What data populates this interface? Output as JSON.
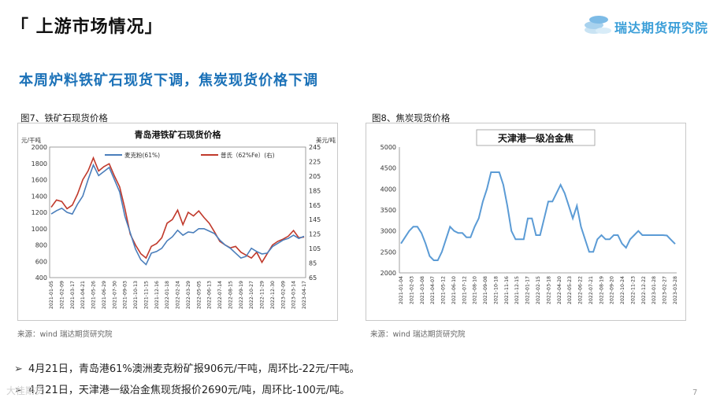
{
  "header": {
    "title": "「 上游市场情况」",
    "logo_text": "瑞达期货研究院"
  },
  "headline": "本周炉料铁矿石现货下调，焦炭现货价格下调",
  "figure1": {
    "caption": "图7、铁矿石现货价格",
    "source": "来源：wind   瑞达期货研究院"
  },
  "figure2": {
    "caption": "图8、焦炭现货价格",
    "source": "来源：wind   瑞达期货研究院"
  },
  "bullets": [
    "4月21日，青岛港61%澳洲麦克粉矿报906元/干吨，周环比-22元/干吨。",
    "4月21日，天津港一级冶金焦现货报价2690元/吨，周环比-100元/吨。"
  ],
  "page_number": "7",
  "watermark": "大佳期货",
  "colors": {
    "accent": "#1c72b8",
    "series_blue": "#4a7ebb",
    "series_red": "#c0392b",
    "coke": "#5b9bd5"
  },
  "chart_data": [
    {
      "type": "line",
      "title": "青岛港铁矿石现货价格",
      "ylabel_left": "元/干吨",
      "ylabel_right": "美元/吨",
      "ylim": [
        400,
        2000
      ],
      "ylim_right": [
        65,
        245
      ],
      "yticks": [
        400,
        600,
        800,
        1000,
        1200,
        1400,
        1600,
        1800,
        2000
      ],
      "yticks_right": [
        65,
        85,
        105,
        125,
        145,
        165,
        185,
        205,
        225,
        245
      ],
      "x_tick_labels": [
        "2021-01-05",
        "2021-02-09",
        "2021-03-17",
        "2021-04-21",
        "2021-05-26",
        "2021-06-29",
        "2021-07-30",
        "2021-09-03",
        "2021-10-13",
        "2021-11-15",
        "2021-12-16",
        "2022-01-18",
        "2022-02-24",
        "2022-03-29",
        "2022-05-05",
        "2022-06-13",
        "2022-07-14",
        "2022-08-15",
        "2022-09-19",
        "2022-10-27",
        "2022-11-29",
        "2022-12-30",
        "2023-02-09",
        "2023-03-14",
        "2023-04-17"
      ],
      "series": [
        {
          "name": "麦克粉(61%)",
          "axis": "left",
          "color": "#4a7ebb",
          "values": [
            1180,
            1220,
            1250,
            1200,
            1180,
            1300,
            1400,
            1600,
            1780,
            1650,
            1700,
            1750,
            1600,
            1450,
            1150,
            950,
            750,
            620,
            560,
            700,
            720,
            760,
            850,
            900,
            980,
            920,
            960,
            950,
            1000,
            1000,
            970,
            940,
            860,
            800,
            760,
            700,
            640,
            660,
            760,
            720,
            690,
            700,
            780,
            820,
            860,
            880,
            920,
            880,
            906
          ]
        },
        {
          "name": "普氏（62%Fe）(右)",
          "axis": "right",
          "color": "#c0392b",
          "values": [
            162,
            172,
            170,
            160,
            165,
            180,
            200,
            212,
            230,
            212,
            218,
            222,
            205,
            190,
            160,
            125,
            110,
            98,
            92,
            108,
            112,
            120,
            140,
            145,
            158,
            138,
            155,
            150,
            157,
            148,
            140,
            128,
            115,
            110,
            106,
            108,
            100,
            96,
            92,
            100,
            86,
            98,
            110,
            115,
            118,
            122,
            130,
            120,
            121
          ]
        }
      ]
    },
    {
      "type": "line",
      "title": "天津港一级冶金焦",
      "ylim": [
        2000,
        5000
      ],
      "yticks": [
        2000,
        2500,
        3000,
        3500,
        4000,
        4500,
        5000
      ],
      "x_tick_labels": [
        "2021-01-04",
        "2021-02-03",
        "2021-03-08",
        "2021-04-07",
        "2021-05-12",
        "2021-06-10",
        "2021-07-12",
        "2021-08-10",
        "2021-09-08",
        "2021-10-18",
        "2021-11-16",
        "2021-12-15",
        "2022-01-17",
        "2022-02-15",
        "2022-03-18",
        "2022-04-20",
        "2022-05-23",
        "2022-06-22",
        "2022-07-21",
        "2022-08-19",
        "2022-09-20",
        "2022-10-24",
        "2022-11-23",
        "2022-12-22",
        "2023-01-28",
        "2023-02-27",
        "2023-03-28"
      ],
      "series": [
        {
          "name": "天津港一级冶金焦",
          "color": "#5b9bd5",
          "values": [
            2700,
            2850,
            3000,
            3100,
            3100,
            2950,
            2700,
            2400,
            2300,
            2300,
            2500,
            2800,
            3100,
            3000,
            2950,
            2950,
            2850,
            2850,
            3100,
            3300,
            3700,
            4000,
            4400,
            4400,
            4400,
            4100,
            3600,
            3000,
            2800,
            2800,
            2800,
            3300,
            3300,
            2900,
            2900,
            3300,
            3700,
            3700,
            3900,
            4100,
            3900,
            3600,
            3300,
            3600,
            3100,
            2800,
            2500,
            2500,
            2800,
            2900,
            2800,
            2800,
            2900,
            2900,
            2700,
            2600,
            2800,
            2900,
            3000,
            2900,
            2900,
            2900,
            2900,
            2900,
            2900,
            2890,
            2790,
            2690
          ]
        }
      ]
    }
  ]
}
